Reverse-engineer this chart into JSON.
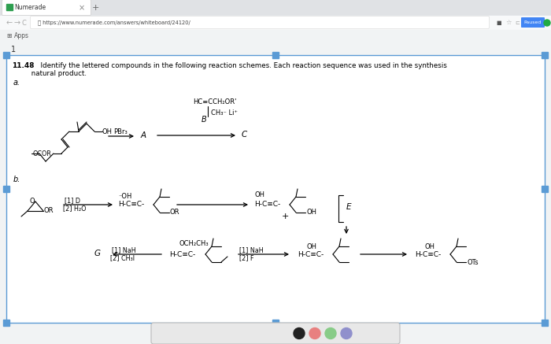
{
  "bg_color": "#f1f3f4",
  "content_bg": "#ffffff",
  "border_color": "#5b9bd5",
  "tab_bg": "#ffffff",
  "tab_text": "Numerade",
  "favicon_color": "#22aa44",
  "url_text": "https://www.numerade.com/answers/whiteboard/24120/",
  "paused_color": "#4285f4",
  "apps_text": "Apps",
  "page_num": "1",
  "title_bold": "11.48",
  "title_rest": "  Identify the lettered compounds in the following reaction schemes. Each reaction sequence was used in the synthesis",
  "title_line2": "         natural product.",
  "toolbar_bg": "#e0e0e0",
  "toolbar_border": "#cccccc",
  "circle_black": "#222222",
  "circle_pink": "#e88080",
  "circle_green": "#88cc88",
  "circle_purple": "#9090cc"
}
